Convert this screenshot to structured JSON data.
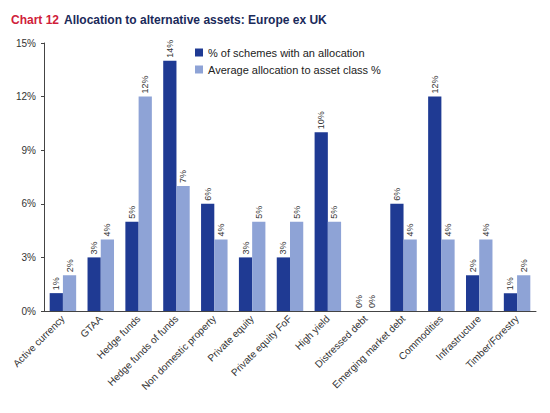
{
  "chart_data": {
    "type": "bar",
    "title": "Chart 12 Allocation to alternative assets: Europe ex UK",
    "categories": [
      "Active currency",
      "GTAA",
      "Hedge funds",
      "Hedge funds of funds",
      "Non domestic property",
      "Private equity",
      "Private equity FoF",
      "High yield",
      "Distressed debt",
      "Emerging market debt",
      "Commodities",
      "Infrastructure",
      "Timber/Forestry"
    ],
    "series": [
      {
        "name": "% of schemes with an allocation",
        "color": "#1f3a93",
        "values": [
          1,
          3,
          5,
          14,
          6,
          3,
          3,
          10,
          0,
          6,
          12,
          2,
          1
        ],
        "value_labels": [
          "1%",
          "3%",
          "5%",
          "14%",
          "6%",
          "3%",
          "3%",
          "10%",
          "0%",
          "6%",
          "12%",
          "2%",
          "1%"
        ]
      },
      {
        "name": "Average allocation to asset class %",
        "color": "#8ea3d6",
        "values": [
          2,
          4,
          12,
          7,
          4,
          5,
          5,
          5,
          0,
          4,
          4,
          4,
          2
        ],
        "value_labels": [
          "2%",
          "4%",
          "12%",
          "7%",
          "4%",
          "5%",
          "5%",
          "5%",
          "0%",
          "4%",
          "4%",
          "4%",
          "2%"
        ]
      }
    ],
    "ylim": [
      0,
      15
    ],
    "yticks": [
      {
        "value": 0,
        "label": "0%"
      },
      {
        "value": 3,
        "label": "3%"
      },
      {
        "value": 6,
        "label": "6%"
      },
      {
        "value": 9,
        "label": "9%"
      },
      {
        "value": 12,
        "label": "12%"
      },
      {
        "value": 15,
        "label": "15%"
      }
    ],
    "grid": false,
    "legend": "top",
    "data_labels": true
  }
}
